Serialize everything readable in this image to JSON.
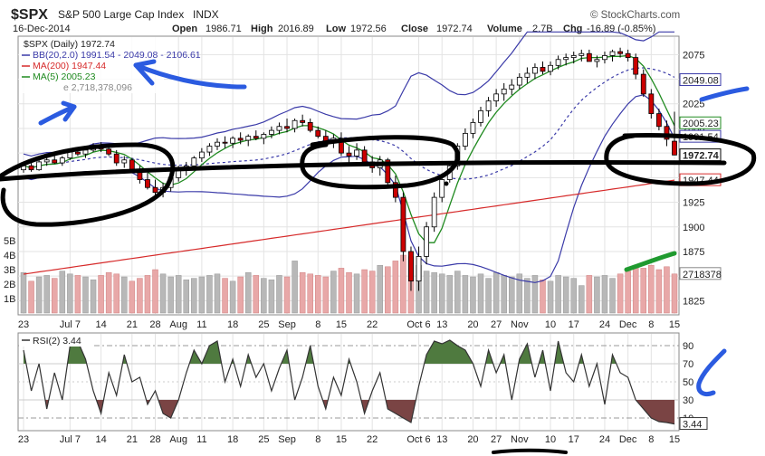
{
  "header": {
    "symbol": "$SPX",
    "name": "S&P 500 Large Cap Index",
    "exchange": "INDX",
    "date": "16-Dec-2014",
    "open_label": "Open",
    "open": "1986.71",
    "high_label": "High",
    "high": "2016.89",
    "low_label": "Low",
    "low": "1972.56",
    "close_label": "Close",
    "close": "1972.74",
    "volume_label": "Volume",
    "volume": "2.7B",
    "chg_label": "Chg",
    "chg": "-16.89 (-0.85%)",
    "source": "© StockCharts.com"
  },
  "legend": {
    "price": "$SPX (Daily) 1972.74",
    "bb": "BB(20,2.0) 1991.54 - 2049.08 - 2106.61",
    "ma200": "MA(200) 1947.44",
    "ma5": "MA(5) 2005.23",
    "vol_partial": "e 2,718,378,096"
  },
  "rsi_legend": "RSI(2) 3.44",
  "colors": {
    "up": "#ffffff",
    "down": "#cc0000",
    "candle_line": "#000000",
    "bb": "#3a3aa8",
    "ma200": "#d62a2a",
    "ma5": "#1f8a1f",
    "vol_up": "#b8b8b8",
    "vol_down": "#e8a8a8",
    "rsi_line": "#333333",
    "rsi_ob": "#4f7a3f",
    "rsi_os": "#7a4444",
    "marker": "#2b5be0",
    "grid": "#e3e3e3"
  },
  "chart_data": [
    {
      "type": "candlestick",
      "title": "$SPX S&P 500 Large Cap Index INDX",
      "x_labels": [
        "23",
        "Jul 7",
        "14",
        "21",
        "28",
        "Aug",
        "11",
        "18",
        "25",
        "Sep",
        "8",
        "15",
        "22",
        "Oct 6",
        "13",
        "20",
        "27",
        "Nov",
        "10",
        "17",
        "24",
        "Dec",
        "8",
        "15"
      ],
      "y_axis_ticks": [
        1825,
        1850,
        1875,
        1900,
        1925,
        1950,
        1975,
        2000,
        2025,
        2050,
        2075
      ],
      "ylim": [
        1818,
        2090
      ],
      "value_tags": {
        "bb_upper": "2049.08",
        "ma5": "2005.23",
        "bb_lower": "1991.54",
        "close": "1972.74",
        "ma200": "1947.44",
        "volume": "2718378"
      },
      "ohlc": [
        [
          1958,
          1965,
          1955,
          1962
        ],
        [
          1962,
          1965,
          1956,
          1958
        ],
        [
          1958,
          1968,
          1957,
          1966
        ],
        [
          1966,
          1970,
          1962,
          1968
        ],
        [
          1968,
          1972,
          1964,
          1965
        ],
        [
          1965,
          1972,
          1962,
          1970
        ],
        [
          1970,
          1978,
          1968,
          1976
        ],
        [
          1976,
          1980,
          1972,
          1974
        ],
        [
          1974,
          1980,
          1970,
          1978
        ],
        [
          1978,
          1985,
          1976,
          1982
        ],
        [
          1982,
          1986,
          1976,
          1979
        ],
        [
          1979,
          1984,
          1972,
          1974
        ],
        [
          1974,
          1978,
          1962,
          1965
        ],
        [
          1965,
          1972,
          1960,
          1968
        ],
        [
          1968,
          1970,
          1955,
          1958
        ],
        [
          1958,
          1962,
          1944,
          1948
        ],
        [
          1948,
          1955,
          1938,
          1940
        ],
        [
          1940,
          1948,
          1932,
          1935
        ],
        [
          1935,
          1945,
          1930,
          1940
        ],
        [
          1940,
          1952,
          1936,
          1950
        ],
        [
          1950,
          1962,
          1946,
          1958
        ],
        [
          1958,
          1966,
          1952,
          1962
        ],
        [
          1962,
          1972,
          1958,
          1970
        ],
        [
          1970,
          1980,
          1966,
          1976
        ],
        [
          1976,
          1985,
          1972,
          1982
        ],
        [
          1982,
          1990,
          1978,
          1986
        ],
        [
          1986,
          1992,
          1980,
          1985
        ],
        [
          1985,
          1992,
          1980,
          1990
        ],
        [
          1990,
          1996,
          1984,
          1988
        ],
        [
          1988,
          1994,
          1982,
          1992
        ],
        [
          1992,
          1998,
          1988,
          1990
        ],
        [
          1990,
          1996,
          1984,
          1994
        ],
        [
          1994,
          2002,
          1990,
          1998
        ],
        [
          1998,
          2006,
          1994,
          2002
        ],
        [
          2002,
          2010,
          1996,
          2000
        ],
        [
          2000,
          2010,
          1996,
          2008
        ],
        [
          2008,
          2014,
          2002,
          2006
        ],
        [
          2006,
          2010,
          1996,
          1998
        ],
        [
          1998,
          2002,
          1990,
          1992
        ],
        [
          1992,
          1998,
          1984,
          1986
        ],
        [
          1986,
          1994,
          1980,
          1990
        ],
        [
          1990,
          1996,
          1972,
          1975
        ],
        [
          1975,
          1982,
          1965,
          1972
        ],
        [
          1972,
          1985,
          1968,
          1978
        ],
        [
          1978,
          1982,
          1962,
          1966
        ],
        [
          1966,
          1972,
          1955,
          1960
        ],
        [
          1960,
          1972,
          1952,
          1968
        ],
        [
          1968,
          1970,
          1940,
          1945
        ],
        [
          1945,
          1952,
          1925,
          1930
        ],
        [
          1930,
          1935,
          1865,
          1875
        ],
        [
          1875,
          1880,
          1835,
          1845
        ],
        [
          1845,
          1880,
          1835,
          1870
        ],
        [
          1870,
          1905,
          1862,
          1900
        ],
        [
          1900,
          1935,
          1895,
          1930
        ],
        [
          1930,
          1952,
          1925,
          1948
        ],
        [
          1948,
          1966,
          1945,
          1962
        ],
        [
          1962,
          1985,
          1958,
          1982
        ],
        [
          1982,
          2000,
          1978,
          1995
        ],
        [
          1995,
          2010,
          1990,
          2006
        ],
        [
          2006,
          2022,
          2002,
          2018
        ],
        [
          2018,
          2032,
          2012,
          2028
        ],
        [
          2028,
          2040,
          2022,
          2035
        ],
        [
          2035,
          2046,
          2028,
          2040
        ],
        [
          2040,
          2050,
          2034,
          2044
        ],
        [
          2044,
          2056,
          2040,
          2052
        ],
        [
          2052,
          2062,
          2046,
          2056
        ],
        [
          2056,
          2066,
          2050,
          2062
        ],
        [
          2062,
          2068,
          2055,
          2058
        ],
        [
          2058,
          2068,
          2054,
          2064
        ],
        [
          2064,
          2074,
          2060,
          2070
        ],
        [
          2070,
          2076,
          2064,
          2072
        ],
        [
          2072,
          2078,
          2066,
          2074
        ],
        [
          2074,
          2080,
          2068,
          2076
        ],
        [
          2076,
          2080,
          2070,
          2068
        ],
        [
          2068,
          2074,
          2062,
          2070
        ],
        [
          2070,
          2078,
          2066,
          2074
        ],
        [
          2074,
          2080,
          2068,
          2078
        ],
        [
          2078,
          2082,
          2072,
          2076
        ],
        [
          2076,
          2080,
          2068,
          2072
        ],
        [
          2072,
          2076,
          2050,
          2055
        ],
        [
          2055,
          2060,
          2032,
          2035
        ],
        [
          2035,
          2040,
          2010,
          2015
        ],
        [
          2015,
          2020,
          1998,
          2002
        ],
        [
          2002,
          2008,
          1982,
          1989
        ],
        [
          1987,
          2017,
          1973,
          1973
        ]
      ]
    },
    {
      "type": "bar",
      "title": "Volume",
      "y_axis_ticks": [
        "1B",
        "2B",
        "3B",
        "4B",
        "5B"
      ],
      "ylim": [
        0,
        5.5
      ],
      "values": [
        2.8,
        2.2,
        2.5,
        2.6,
        2.4,
        2.9,
        2.7,
        2.6,
        2.5,
        2.3,
        2.6,
        2.8,
        2.7,
        2.5,
        2.2,
        2.4,
        2.6,
        3.0,
        2.7,
        2.5,
        2.6,
        2.3,
        2.4,
        2.5,
        2.6,
        2.7,
        2.4,
        2.2,
        2.5,
        2.8,
        2.6,
        2.4,
        2.3,
        2.6,
        2.5,
        3.6,
        2.8,
        2.7,
        2.6,
        2.5,
        2.9,
        3.1,
        2.8,
        2.7,
        3.0,
        2.9,
        3.3,
        3.2,
        3.6,
        4.0,
        3.9,
        3.3,
        2.9,
        2.8,
        2.7,
        2.6,
        2.9,
        2.6,
        2.5,
        2.7,
        2.4,
        2.8,
        2.6,
        2.5,
        2.7,
        2.4,
        2.6,
        2.3,
        2.2,
        2.6,
        2.5,
        2.4,
        1.9,
        2.6,
        2.5,
        2.6,
        2.4,
        2.7,
        2.9,
        3.2,
        3.1,
        3.3,
        3.0,
        3.2,
        2.7
      ]
    },
    {
      "type": "line",
      "title": "RSI(2) 3.44",
      "y_axis_ticks": [
        10,
        30,
        50,
        70,
        90
      ],
      "ylim": [
        0,
        100
      ],
      "values": [
        85,
        40,
        70,
        20,
        60,
        30,
        90,
        95,
        75,
        40,
        15,
        60,
        35,
        80,
        50,
        55,
        25,
        40,
        15,
        10,
        30,
        60,
        85,
        70,
        90,
        95,
        50,
        75,
        45,
        80,
        55,
        70,
        40,
        65,
        85,
        30,
        55,
        90,
        45,
        20,
        55,
        35,
        75,
        50,
        15,
        40,
        60,
        20,
        15,
        10,
        5,
        45,
        80,
        95,
        92,
        96,
        90,
        85,
        70,
        45,
        85,
        60,
        80,
        30,
        75,
        92,
        55,
        85,
        40,
        95,
        60,
        50,
        80,
        45,
        70,
        25,
        80,
        60,
        55,
        30,
        20,
        10,
        6,
        5,
        3.44
      ],
      "last_label": "3.44",
      "last_label_tag": "3.44"
    }
  ]
}
